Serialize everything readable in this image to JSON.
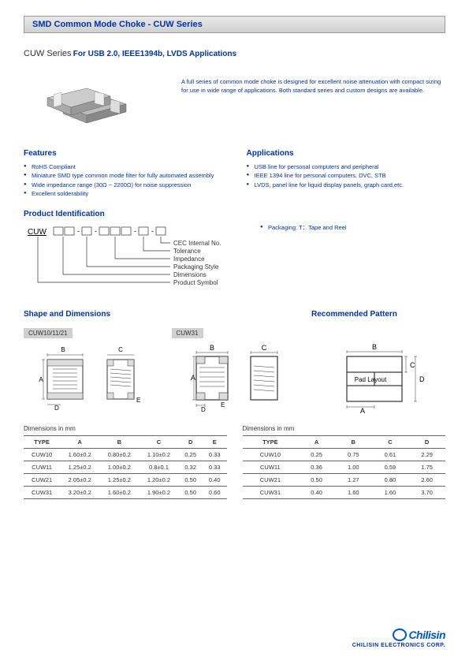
{
  "titleBar": "SMD Common Mode Choke - CUW Series",
  "subtitle": {
    "series": "CUW Series",
    "apps": "For USB 2.0, IEEE1394b, LVDS Applications"
  },
  "heroText": "A full series of common mode choke is designed for excellent noise attenuation with compact sizing for use in wide range of applications. Both standard series and custom designs are available.",
  "features": {
    "heading": "Features",
    "items": [
      "RoHS Compliant",
      "Miniature SMD type common mode filter for fully automated assembly",
      "Wide impedance range (30Ω ~ 2200Ω) for noise suppression",
      "Excellent solderability"
    ]
  },
  "applications": {
    "heading": "Applications",
    "items": [
      "USB line for personal computers and peripheral",
      "IEEE 1394 line for personal computers, DVC, STB",
      "LVDS, panel line for liquid display panels, graph card,etc."
    ]
  },
  "prodId": {
    "heading": "Product Identification",
    "packagingNote": "Packaging: T：Tape and Reel",
    "diagramPrefix": "CUW",
    "labels": [
      "CEC Internal No.",
      "Tolerance",
      "Impedance",
      "Packaging Style",
      "Dimensions",
      "Product Symbol"
    ]
  },
  "shapeHeading": "Shape and Dimensions",
  "patternHeading": "Recommended Pattern",
  "shapeLabel1": "CUW10/11/21",
  "shapeLabel2": "CUW31",
  "padLayoutText": "Pad Layout",
  "dimLabel": "Dimensions in mm",
  "table1": {
    "cols": [
      "TYPE",
      "A",
      "B",
      "C",
      "D",
      "E"
    ],
    "rows": [
      [
        "CUW10",
        "1.60±0.2",
        "0.80±0.2",
        "1.10±0.2",
        "0.25",
        "0.33"
      ],
      [
        "CUW11",
        "1.25±0.2",
        "1.00±0.2",
        "0.8±0.1",
        "0.32",
        "0.33"
      ],
      [
        "CUW21",
        "2.05±0.2",
        "1.25±0.2",
        "1.20±0.2",
        "0.50",
        "0.40"
      ],
      [
        "CUW31",
        "3.20±0.2",
        "1.60±0.2",
        "1.90±0.2",
        "0.50",
        "0.60"
      ]
    ]
  },
  "table2": {
    "cols": [
      "TYPE",
      "A",
      "B",
      "C",
      "D"
    ],
    "rows": [
      [
        "CUW10",
        "0.25",
        "0.75",
        "0.61",
        "2.29"
      ],
      [
        "CUW11",
        "0.36",
        "1.00",
        "0.59",
        "1.75"
      ],
      [
        "CUW21",
        "0.50",
        "1.27",
        "0.80",
        "2.60"
      ],
      [
        "CUW31",
        "0.40",
        "1.60",
        "1.60",
        "3.70"
      ]
    ]
  },
  "logo": {
    "mark": "Chilisin",
    "sub": "CHILISIN ELECTRONICS CORP."
  },
  "colors": {
    "blue": "#0033aa",
    "lightBlue": "#0055cc",
    "gray": "#d0d0d0",
    "line": "#555"
  }
}
